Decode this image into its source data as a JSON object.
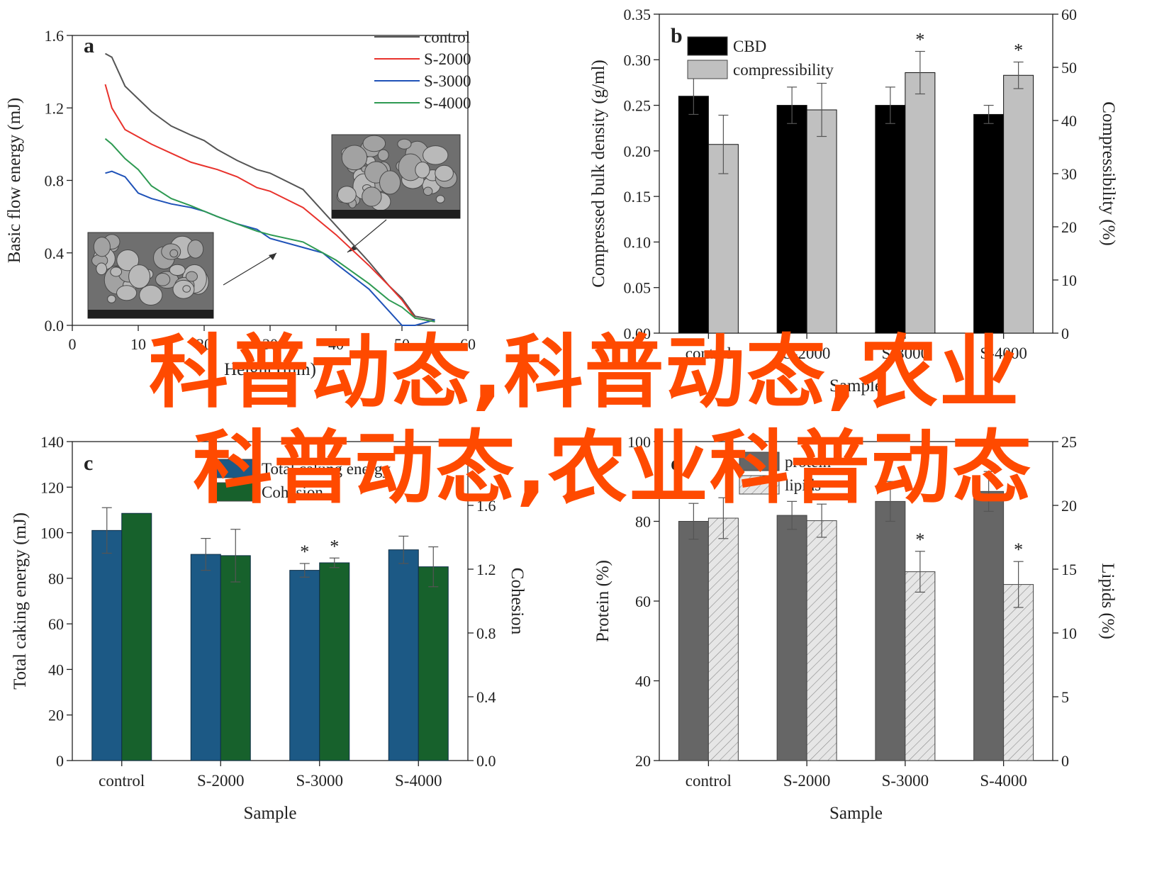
{
  "overlay": {
    "line1": "科普动态,科普动态,农业",
    "line2": "科普动态,农业科普动态"
  },
  "chart_data": [
    {
      "id": "a",
      "type": "line",
      "panel_label": "a",
      "xlabel": "Height (mm)",
      "ylabel": "Basic flow energy (mJ)",
      "xlim": [
        0,
        60
      ],
      "ylim": [
        0.0,
        1.6
      ],
      "x_ticks": [
        "0",
        "10",
        "20",
        "30",
        "40",
        "50",
        "60"
      ],
      "y_ticks": [
        "0.0",
        "0.4",
        "0.8",
        "1.2",
        "1.6"
      ],
      "legend_position": "top-right",
      "grid": false,
      "series": [
        {
          "name": "control",
          "color": "#555555",
          "x": [
            5,
            6,
            8,
            10,
            12,
            15,
            18,
            20,
            22,
            25,
            28,
            30,
            35,
            40,
            45,
            48,
            50,
            52,
            55
          ],
          "y": [
            1.5,
            1.48,
            1.32,
            1.25,
            1.18,
            1.1,
            1.05,
            1.02,
            0.97,
            0.91,
            0.86,
            0.84,
            0.75,
            0.55,
            0.35,
            0.22,
            0.15,
            0.05,
            0.03
          ]
        },
        {
          "name": "S-2000",
          "color": "#e8322c",
          "x": [
            5,
            6,
            8,
            10,
            12,
            15,
            18,
            20,
            22,
            25,
            28,
            30,
            35,
            40,
            45,
            48,
            50,
            52,
            55
          ],
          "y": [
            1.33,
            1.2,
            1.08,
            1.04,
            1.0,
            0.95,
            0.9,
            0.88,
            0.86,
            0.82,
            0.76,
            0.74,
            0.65,
            0.5,
            0.33,
            0.22,
            0.14,
            0.04,
            0.02
          ]
        },
        {
          "name": "S-3000",
          "color": "#1f52b8",
          "x": [
            5,
            6,
            8,
            10,
            12,
            15,
            18,
            20,
            22,
            25,
            28,
            30,
            35,
            38,
            40,
            45,
            48,
            50,
            52,
            55
          ],
          "y": [
            0.84,
            0.85,
            0.82,
            0.73,
            0.7,
            0.67,
            0.65,
            0.63,
            0.6,
            0.56,
            0.53,
            0.48,
            0.43,
            0.4,
            0.34,
            0.2,
            0.08,
            0.0,
            0.0,
            0.03
          ]
        },
        {
          "name": "S-4000",
          "color": "#2e9a52",
          "x": [
            5,
            6,
            8,
            10,
            12,
            15,
            18,
            20,
            22,
            25,
            28,
            30,
            35,
            40,
            45,
            48,
            50,
            52,
            55
          ],
          "y": [
            1.03,
            1.0,
            0.92,
            0.86,
            0.77,
            0.7,
            0.66,
            0.63,
            0.6,
            0.56,
            0.52,
            0.5,
            0.46,
            0.36,
            0.23,
            0.14,
            0.1,
            0.04,
            0.02
          ]
        }
      ]
    },
    {
      "id": "b",
      "type": "bar",
      "panel_label": "b",
      "categories": [
        "control",
        "S-2000",
        "S-3000",
        "S-4000"
      ],
      "xlabel": "Sample",
      "ylabel": "Compressed bulk density (g/ml)",
      "y2label": "Compressibility (%)",
      "ylim": [
        0.0,
        0.35
      ],
      "y2lim": [
        0,
        60
      ],
      "y_ticks": [
        "0.00",
        "0.05",
        "0.10",
        "0.15",
        "0.20",
        "0.25",
        "0.30",
        "0.35"
      ],
      "y2_ticks": [
        "0",
        "10",
        "20",
        "30",
        "40",
        "50",
        "60"
      ],
      "legend_position": "top-left",
      "series": [
        {
          "name": "CBD",
          "axis": "left",
          "color": "#000000",
          "values": [
            0.26,
            0.25,
            0.25,
            0.24
          ],
          "errors": [
            0.02,
            0.02,
            0.02,
            0.01
          ],
          "significance": [
            "",
            "",
            "",
            ""
          ]
        },
        {
          "name": "compressibility",
          "axis": "right",
          "color": "#c0c0c0",
          "values": [
            35.5,
            42.0,
            49.0,
            48.5
          ],
          "errors": [
            5.5,
            5.0,
            4.0,
            2.5
          ],
          "significance": [
            "",
            "",
            "*",
            "*"
          ]
        }
      ]
    },
    {
      "id": "c",
      "type": "bar",
      "panel_label": "c",
      "categories": [
        "control",
        "S-2000",
        "S-3000",
        "S-4000"
      ],
      "xlabel": "Sample",
      "ylabel": "Total caking energy (mJ)",
      "y2label": "Cohesion",
      "ylim": [
        0,
        140
      ],
      "y2lim": [
        0.0,
        2.0
      ],
      "y_ticks": [
        "0",
        "20",
        "40",
        "60",
        "80",
        "100",
        "120",
        "140"
      ],
      "y2_ticks": [
        "0.0",
        "0.4",
        "0.8",
        "1.2",
        "1.6"
      ],
      "legend_position": "top-left",
      "series": [
        {
          "name": "Total caking energy",
          "axis": "left",
          "color": "#1c5985",
          "values": [
            101,
            90.5,
            83.5,
            92.5
          ],
          "errors": [
            10,
            7,
            3,
            6
          ],
          "significance": [
            "",
            "",
            "*",
            ""
          ]
        },
        {
          "name": "Cohesion",
          "axis": "right",
          "color": "#17612c",
          "values": [
            1.55,
            1.285,
            1.24,
            1.215
          ],
          "errors": [
            0.0,
            0.165,
            0.03,
            0.125
          ],
          "significance": [
            "",
            "",
            "*",
            ""
          ]
        }
      ]
    },
    {
      "id": "d",
      "type": "bar",
      "panel_label": "d",
      "categories": [
        "control",
        "S-2000",
        "S-3000",
        "S-4000"
      ],
      "xlabel": "Sample",
      "ylabel": "Protein (%)",
      "y2label": "Lipids (%)",
      "ylim": [
        20,
        100
      ],
      "y2lim": [
        0,
        25
      ],
      "y_ticks": [
        "20",
        "40",
        "60",
        "80",
        "100"
      ],
      "y2_ticks": [
        "0",
        "5",
        "10",
        "15",
        "20",
        "25"
      ],
      "legend_position": "top-left",
      "series": [
        {
          "name": "protein",
          "axis": "left",
          "color": "#666666",
          "values": [
            80.0,
            81.5,
            85.0,
            87.5
          ],
          "errors": [
            4.5,
            3.5,
            5.0,
            5.0
          ],
          "significance": [
            "",
            "",
            "",
            ""
          ]
        },
        {
          "name": "lipids",
          "axis": "right",
          "color": "#dddddd",
          "pattern": "hatch",
          "values": [
            19.0,
            18.8,
            14.8,
            13.8
          ],
          "errors": [
            1.6,
            1.3,
            1.6,
            1.8
          ],
          "significance": [
            "",
            "",
            "*",
            "*"
          ]
        }
      ]
    }
  ]
}
